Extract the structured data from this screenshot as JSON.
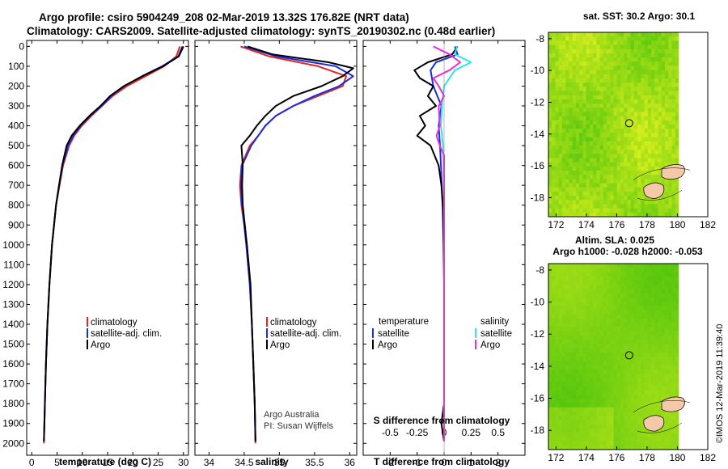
{
  "header": {
    "line1": "Argo profile: csiro 5904249_208 02-Mar-2019 13.32S 176.82E (NRT data)",
    "line2": "Climatology: CARS2009. Satellite-adjusted climatology: synTS_20190302.nc (0.48d earlier)"
  },
  "colors": {
    "climatology": "#e8241c",
    "satellite": "#1a2ee0",
    "argo": "#000000",
    "sat_salinity": "#2ee6e6",
    "argo_salinity": "#ee2ad8"
  },
  "depth_ticks": [
    "0",
    "100",
    "200",
    "300",
    "400",
    "500",
    "600",
    "700",
    "800",
    "900",
    "1000",
    "1100",
    "1200",
    "1300",
    "1400",
    "1500",
    "1600",
    "1700",
    "1800",
    "1900",
    "2000"
  ],
  "chart_data": [
    {
      "type": "line",
      "id": "temperature",
      "xlabel": "temperature (deg C)",
      "ylabel": "depth",
      "xlim": [
        -1,
        31
      ],
      "ylim": [
        2060,
        -30
      ],
      "xticks": [
        "0",
        "5",
        "10",
        "15",
        "20",
        "25",
        "30"
      ],
      "legend": [
        "climatology",
        "satellite-adj. clim.",
        "Argo"
      ],
      "series": [
        {
          "name": "climatology",
          "depth": [
            0,
            50,
            100,
            150,
            200,
            250,
            300,
            350,
            400,
            450,
            500,
            600,
            700,
            800,
            900,
            1000,
            1200,
            1400,
            1600,
            1800,
            2000
          ],
          "values": [
            29.3,
            28.6,
            26.2,
            22.5,
            18.8,
            16.0,
            13.9,
            11.8,
            9.9,
            8.4,
            7.4,
            6.2,
            5.5,
            4.8,
            4.4,
            4.0,
            3.5,
            3.1,
            2.8,
            2.6,
            2.4
          ]
        },
        {
          "name": "satellite-adj. clim.",
          "depth": [
            0,
            50,
            100,
            150,
            200,
            250,
            300,
            350,
            400,
            450,
            500,
            600,
            700,
            800,
            900,
            1000,
            1200,
            1400,
            1600,
            1800,
            1990
          ],
          "values": [
            29.8,
            29.0,
            25.8,
            21.8,
            18.3,
            15.7,
            13.8,
            11.6,
            9.7,
            8.2,
            7.2,
            6.1,
            5.4,
            4.8,
            4.4,
            4.0,
            3.5,
            3.1,
            2.8,
            2.6,
            2.4
          ]
        },
        {
          "name": "Argo",
          "depth": [
            0,
            50,
            100,
            150,
            200,
            250,
            300,
            350,
            400,
            450,
            500,
            600,
            700,
            800,
            900,
            1000,
            1200,
            1400,
            1600,
            1800,
            1990
          ],
          "values": [
            30.0,
            29.1,
            26.0,
            21.9,
            18.2,
            15.5,
            13.6,
            11.4,
            9.5,
            7.9,
            6.9,
            6.0,
            5.4,
            4.8,
            4.4,
            4.0,
            3.5,
            3.1,
            2.8,
            2.6,
            2.4
          ]
        }
      ]
    },
    {
      "type": "line",
      "id": "salinity",
      "xlabel": "salinity",
      "ylabel": "depth",
      "xlim": [
        33.8,
        36.1
      ],
      "ylim": [
        2060,
        -30
      ],
      "xticks": [
        "34",
        "34.5",
        "35",
        "35.5",
        "36"
      ],
      "legend": [
        "climatology",
        "satellite-adj. clim.",
        "Argo"
      ],
      "credit": [
        "Argo Australia",
        "PI: Susan Wijffels"
      ],
      "series": [
        {
          "name": "climatology",
          "depth": [
            0,
            50,
            100,
            150,
            200,
            250,
            300,
            350,
            400,
            450,
            500,
            600,
            700,
            800,
            900,
            1000,
            1200,
            1400,
            1600,
            1800,
            2000
          ],
          "values": [
            34.45,
            34.85,
            35.55,
            35.95,
            35.9,
            35.55,
            35.2,
            34.95,
            34.8,
            34.7,
            34.58,
            34.46,
            34.44,
            34.46,
            34.5,
            34.53,
            34.58,
            34.61,
            34.63,
            34.65,
            34.66
          ]
        },
        {
          "name": "satellite-adj. clim.",
          "depth": [
            0,
            50,
            100,
            150,
            200,
            250,
            300,
            350,
            400,
            450,
            500,
            600,
            700,
            800,
            900,
            1000,
            1200,
            1400,
            1600,
            1800,
            1990
          ],
          "values": [
            34.5,
            34.95,
            35.8,
            36.05,
            35.85,
            35.5,
            35.2,
            34.95,
            34.8,
            34.7,
            34.6,
            34.47,
            34.45,
            34.47,
            34.5,
            34.53,
            34.58,
            34.61,
            34.63,
            34.65,
            34.66
          ]
        },
        {
          "name": "Argo",
          "depth": [
            0,
            40,
            80,
            110,
            150,
            200,
            250,
            300,
            350,
            400,
            450,
            500,
            550,
            600,
            700,
            800,
            900,
            1000,
            1200,
            1400,
            1600,
            1800,
            1990
          ],
          "values": [
            34.55,
            34.9,
            35.7,
            36.05,
            35.9,
            35.6,
            35.2,
            34.95,
            34.8,
            34.68,
            34.58,
            34.46,
            34.47,
            34.48,
            34.47,
            34.48,
            34.51,
            34.54,
            34.59,
            34.61,
            34.63,
            34.65,
            34.66
          ]
        }
      ]
    },
    {
      "type": "line",
      "id": "difference",
      "xlabel": "T difference from climatology",
      "xlabel_top": "S difference from climatology",
      "xlim": [
        -3,
        3
      ],
      "ylim": [
        2060,
        -30
      ],
      "xticks": [
        "-2",
        "-1",
        "0",
        "1",
        "2"
      ],
      "xticks_top": [
        "-0.5",
        "-0.25",
        "0",
        "0.25",
        "0.5"
      ],
      "legend_headers": [
        "temperature",
        "salinity"
      ],
      "legend": [
        "satellite",
        "Argo",
        "satellite",
        "Argo"
      ],
      "series": [
        {
          "name": "temperature satellite",
          "depth": [
            0,
            40,
            80,
            120,
            200,
            300,
            400,
            500,
            800,
            1200,
            1600,
            1990
          ],
          "values": [
            0.4,
            0.5,
            -0.3,
            -0.5,
            -0.4,
            -0.1,
            -0.2,
            -0.15,
            -0.05,
            0.0,
            0.0,
            0.0
          ]
        },
        {
          "name": "temperature Argo",
          "depth": [
            0,
            40,
            80,
            120,
            160,
            200,
            250,
            300,
            350,
            400,
            450,
            500,
            600,
            700,
            800,
            1000,
            1200,
            1500,
            1800,
            1900,
            1990
          ],
          "values": [
            0.5,
            0.3,
            -0.6,
            -1.1,
            -0.9,
            -0.4,
            -0.6,
            -0.3,
            -0.9,
            -0.7,
            -1.0,
            -0.5,
            -0.2,
            -0.1,
            -0.05,
            0.0,
            0.0,
            0.0,
            0.0,
            -0.1,
            0.0
          ]
        },
        {
          "name": "salinity satellite",
          "depth": [
            0,
            40,
            80,
            120,
            160,
            200,
            300,
            400,
            500,
            700,
            1000,
            1400,
            1800,
            1990
          ],
          "values": [
            0.12,
            0.1,
            0.25,
            0.1,
            0.05,
            0.0,
            -0.02,
            -0.03,
            -0.01,
            0.0,
            0.0,
            0.0,
            0.0,
            0.0
          ]
        },
        {
          "name": "salinity Argo",
          "depth": [
            0,
            40,
            80,
            120,
            160,
            200,
            250,
            300,
            400,
            450,
            500,
            550,
            700,
            1000,
            1400,
            1990
          ],
          "values": [
            -0.1,
            0.05,
            0.15,
            0.05,
            -0.1,
            -0.05,
            0.0,
            -0.05,
            -0.04,
            -0.07,
            -0.04,
            0.0,
            0.0,
            0.0,
            0.0,
            0.0
          ]
        }
      ]
    }
  ],
  "maps": {
    "sst": {
      "title": "sat. SST: 30.2 Argo: 30.1",
      "lat_ticks": [
        "-8",
        "-10",
        "-12",
        "-14",
        "-16",
        "-18"
      ],
      "lon_ticks": [
        "172",
        "174",
        "176",
        "178",
        "180",
        "182"
      ]
    },
    "sla": {
      "title1": "Altim. SLA: 0.025",
      "title2": "Argo h1000: -0.028 h2000: -0.053",
      "lat_ticks": [
        "-8",
        "-10",
        "-12",
        "-14",
        "-16",
        "-18"
      ],
      "lon_ticks": [
        "172",
        "174",
        "176",
        "178",
        "180",
        "182"
      ]
    },
    "float_position": {
      "lon": 176.82,
      "lat": -13.32
    }
  },
  "footer": {
    "credit": "©IMOS 12-Mar-2019 11:39:40"
  }
}
